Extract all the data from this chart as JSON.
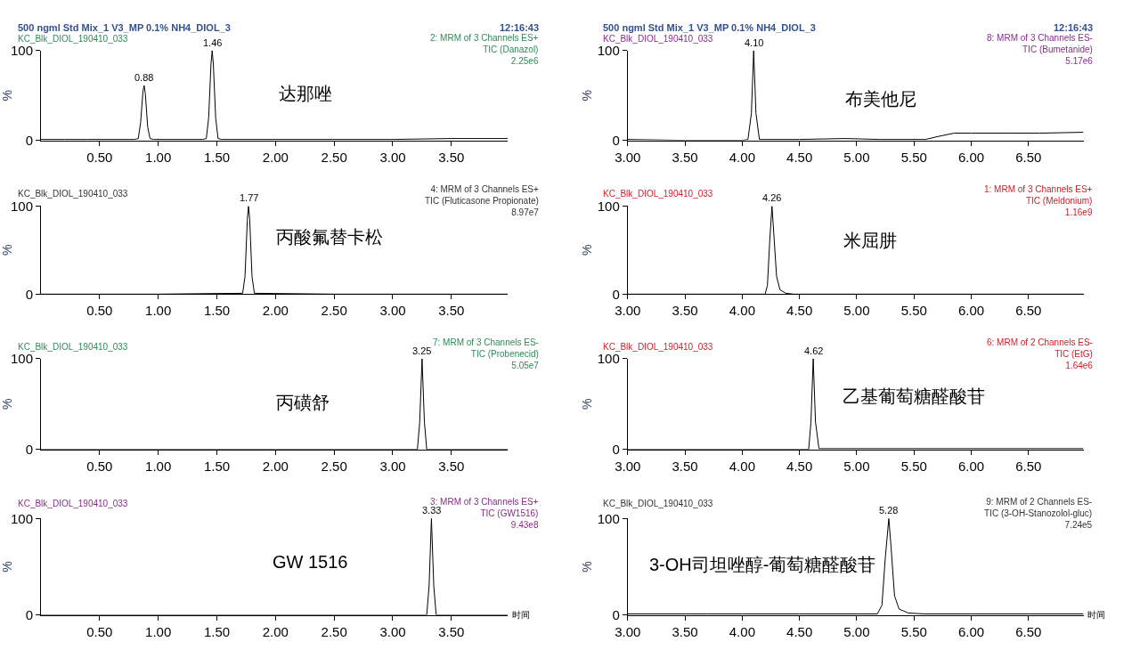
{
  "chart_data": [
    {
      "type": "line",
      "title": "500 ngml Std Mix_1 V3_MP 0.1% NH4_DIOL_3",
      "subtitle": "KC_Blk_DIOL_190410_033",
      "ylabel": "%",
      "annotations": [
        "12:16:43",
        "2: MRM of 3 Channels ES+\nTIC (Danazol)\n2.25e6",
        "达那唑",
        {
          "text": "0.88",
          "x": 0.88,
          "y": 61
        },
        {
          "text": "1.46",
          "x": 1.46,
          "y": 100
        }
      ],
      "x": [
        0,
        0.2,
        0.4,
        0.6,
        0.8,
        0.83,
        0.85,
        0.87,
        0.88,
        0.89,
        0.91,
        0.93,
        0.96,
        1.2,
        1.38,
        1.41,
        1.43,
        1.45,
        1.46,
        1.47,
        1.49,
        1.51,
        1.54,
        2.0,
        2.5,
        3.0,
        3.5,
        3.98
      ],
      "series": [
        {
          "color": "#000000",
          "values": [
            1,
            1,
            1,
            1,
            1,
            2,
            20,
            55,
            61,
            52,
            15,
            2,
            1,
            1,
            1,
            2,
            25,
            85,
            100,
            85,
            25,
            2,
            1,
            1,
            1,
            1,
            2,
            2
          ]
        }
      ],
      "xlim": [
        0,
        3.98
      ],
      "xticks": [
        {
          "value": 0.5,
          "label": "0.50"
        },
        {
          "value": 1.0,
          "label": "1.00"
        },
        {
          "value": 1.5,
          "label": "1.50"
        },
        {
          "value": 2.0,
          "label": "2.00"
        },
        {
          "value": 2.5,
          "label": "2.50"
        },
        {
          "value": 3.0,
          "label": "3.00"
        },
        {
          "value": 3.5,
          "label": "3.50"
        }
      ],
      "ylim": [
        0,
        100
      ],
      "yticks": [
        0,
        100
      ]
    },
    {
      "type": "line",
      "title": "500 ngml Std Mix_1 V3_MP 0.1% NH4_DIOL_3",
      "subtitle": "KC_Blk_DIOL_190410_033",
      "ylabel": "%",
      "annotations": [
        "12:16:43",
        "8: MRM of 3 Channels ES-\nTIC (Bumetanide)\n5.17e6",
        "布美他尼",
        {
          "text": "4.10",
          "x": 4.1,
          "y": 100
        }
      ],
      "x": [
        3.0,
        3.5,
        4.0,
        4.05,
        4.08,
        4.1,
        4.12,
        4.15,
        4.5,
        4.9,
        5.2,
        5.6,
        5.7,
        5.85,
        6.0,
        6.3,
        6.6,
        6.98
      ],
      "series": [
        {
          "color": "#000000",
          "values": [
            1,
            0,
            0,
            1,
            30,
            100,
            30,
            1,
            1,
            2,
            1,
            1,
            4,
            8,
            8,
            8,
            8,
            9
          ]
        }
      ],
      "xlim": [
        3.0,
        6.98
      ],
      "xticks": [
        {
          "value": 3.0,
          "label": "3.00"
        },
        {
          "value": 3.5,
          "label": "3.50"
        },
        {
          "value": 4.0,
          "label": "4.00"
        },
        {
          "value": 4.5,
          "label": "4.50"
        },
        {
          "value": 5.0,
          "label": "5.00"
        },
        {
          "value": 5.5,
          "label": "5.50"
        },
        {
          "value": 6.0,
          "label": "6.00"
        },
        {
          "value": 6.5,
          "label": "6.50"
        }
      ],
      "ylim": [
        0,
        100
      ],
      "yticks": [
        0,
        100
      ]
    },
    {
      "type": "line",
      "subtitle": "KC_Blk_DIOL_190410_033",
      "ylabel": "%",
      "annotations": [
        "4: MRM of 3 Channels ES+\nTIC (Fluticasone Propionate)\n8.97e7",
        "丙酸氟替卡松",
        {
          "text": "1.77",
          "x": 1.77,
          "y": 100
        }
      ],
      "x": [
        0,
        1.0,
        1.72,
        1.74,
        1.76,
        1.77,
        1.78,
        1.8,
        1.82,
        2.5,
        3.98
      ],
      "series": [
        {
          "color": "#000000",
          "values": [
            0,
            0,
            1,
            20,
            85,
            100,
            85,
            20,
            1,
            0,
            0
          ]
        }
      ],
      "xlim": [
        0,
        3.98
      ],
      "xticks": [
        {
          "value": 0.5,
          "label": "0.50"
        },
        {
          "value": 1.0,
          "label": "1.00"
        },
        {
          "value": 1.5,
          "label": "1.50"
        },
        {
          "value": 2.0,
          "label": "2.00"
        },
        {
          "value": 2.5,
          "label": "2.50"
        },
        {
          "value": 3.0,
          "label": "3.00"
        },
        {
          "value": 3.5,
          "label": "3.50"
        }
      ],
      "ylim": [
        0,
        100
      ],
      "yticks": [
        0,
        100
      ]
    },
    {
      "type": "line",
      "subtitle": "KC_Blk_DIOL_190410_033",
      "ylabel": "%",
      "annotations": [
        "1: MRM of 3 Channels ES+\nTIC (Meldonium)\n1.16e9",
        "米屈肼",
        {
          "text": "4.26",
          "x": 4.26,
          "y": 100
        }
      ],
      "x": [
        3.0,
        4.0,
        4.2,
        4.22,
        4.24,
        4.26,
        4.28,
        4.3,
        4.33,
        4.38,
        4.45,
        5.5,
        6.98
      ],
      "series": [
        {
          "color": "#000000",
          "values": [
            0,
            0,
            0,
            10,
            60,
            100,
            60,
            20,
            5,
            1,
            0,
            0,
            0
          ]
        }
      ],
      "xlim": [
        3.0,
        6.98
      ],
      "xticks": [
        {
          "value": 3.0,
          "label": "3.00"
        },
        {
          "value": 3.5,
          "label": "3.50"
        },
        {
          "value": 4.0,
          "label": "4.00"
        },
        {
          "value": 4.5,
          "label": "4.50"
        },
        {
          "value": 5.0,
          "label": "5.00"
        },
        {
          "value": 5.5,
          "label": "5.50"
        },
        {
          "value": 6.0,
          "label": "6.00"
        },
        {
          "value": 6.5,
          "label": "6.50"
        }
      ],
      "ylim": [
        0,
        100
      ],
      "yticks": [
        0,
        100
      ]
    },
    {
      "type": "line",
      "subtitle": "KC_Blk_DIOL_190410_033",
      "ylabel": "%",
      "annotations": [
        "7: MRM of 3 Channels ES-\nTIC (Probenecid)\n5.05e7",
        "丙磺舒",
        {
          "text": "3.25",
          "x": 3.25,
          "y": 100
        }
      ],
      "x": [
        0,
        2.0,
        3.21,
        3.23,
        3.25,
        3.27,
        3.29,
        3.98
      ],
      "series": [
        {
          "color": "#000000",
          "values": [
            0,
            0,
            0,
            30,
            100,
            30,
            0,
            0
          ]
        }
      ],
      "xlim": [
        0,
        3.98
      ],
      "xticks": [
        {
          "value": 0.5,
          "label": "0.50"
        },
        {
          "value": 1.0,
          "label": "1.00"
        },
        {
          "value": 1.5,
          "label": "1.50"
        },
        {
          "value": 2.0,
          "label": "2.00"
        },
        {
          "value": 2.5,
          "label": "2.50"
        },
        {
          "value": 3.0,
          "label": "3.00"
        },
        {
          "value": 3.5,
          "label": "3.50"
        }
      ],
      "ylim": [
        0,
        100
      ],
      "yticks": [
        0,
        100
      ]
    },
    {
      "type": "line",
      "subtitle": "KC_Blk_DIOL_190410_033",
      "ylabel": "%",
      "annotations": [
        "6: MRM of 2 Channels ES-\nTIC (EtG)\n1.64e6",
        "乙基葡萄糖醛酸苷",
        {
          "text": "4.62",
          "x": 4.62,
          "y": 100
        }
      ],
      "x": [
        3.0,
        4.0,
        4.58,
        4.6,
        4.62,
        4.64,
        4.67,
        5.5,
        6.98
      ],
      "series": [
        {
          "color": "#000000",
          "values": [
            0,
            0,
            0,
            30,
            100,
            30,
            1,
            1,
            1
          ]
        }
      ],
      "xlim": [
        3.0,
        6.98
      ],
      "xticks": [
        {
          "value": 3.0,
          "label": "3.00"
        },
        {
          "value": 3.5,
          "label": "3.50"
        },
        {
          "value": 4.0,
          "label": "4.00"
        },
        {
          "value": 4.5,
          "label": "4.50"
        },
        {
          "value": 5.0,
          "label": "5.00"
        },
        {
          "value": 5.5,
          "label": "5.50"
        },
        {
          "value": 6.0,
          "label": "6.00"
        },
        {
          "value": 6.5,
          "label": "6.50"
        }
      ],
      "ylim": [
        0,
        100
      ],
      "yticks": [
        0,
        100
      ]
    },
    {
      "type": "line",
      "subtitle": "KC_Blk_DIOL_190410_033",
      "xlabel": "时间",
      "ylabel": "%",
      "annotations": [
        "3: MRM of 3 Channels ES+\nTIC (GW1516)\n9.43e8",
        "GW 1516",
        {
          "text": "3.33",
          "x": 3.33,
          "y": 100
        }
      ],
      "x": [
        0,
        2.0,
        3.29,
        3.31,
        3.33,
        3.35,
        3.37,
        3.98
      ],
      "series": [
        {
          "color": "#000000",
          "values": [
            0,
            0,
            0,
            30,
            100,
            30,
            0,
            0
          ]
        }
      ],
      "xlim": [
        0,
        3.98
      ],
      "xticks": [
        {
          "value": 0.5,
          "label": "0.50"
        },
        {
          "value": 1.0,
          "label": "1.00"
        },
        {
          "value": 1.5,
          "label": "1.50"
        },
        {
          "value": 2.0,
          "label": "2.00"
        },
        {
          "value": 2.5,
          "label": "2.50"
        },
        {
          "value": 3.0,
          "label": "3.00"
        },
        {
          "value": 3.5,
          "label": "3.50"
        }
      ],
      "ylim": [
        0,
        100
      ],
      "yticks": [
        0,
        100
      ]
    },
    {
      "type": "line",
      "subtitle": "KC_Blk_DIOL_190410_033",
      "xlabel": "时间",
      "ylabel": "%",
      "annotations": [
        "9: MRM of 2 Channels ES-\nTIC (3-OH-Stanozolol-gluc)\n7.24e5",
        "3-OH司坦唑醇-葡萄糖醛酸苷",
        {
          "text": "5.28",
          "x": 5.28,
          "y": 100
        }
      ],
      "x": [
        3.0,
        3.5,
        3.7,
        4.0,
        4.5,
        5.0,
        5.18,
        5.22,
        5.25,
        5.28,
        5.3,
        5.33,
        5.37,
        5.45,
        5.6,
        6.0,
        6.5,
        6.98
      ],
      "series": [
        {
          "color": "#000000",
          "values": [
            1,
            1,
            1,
            1,
            1,
            1,
            1,
            10,
            60,
            100,
            70,
            20,
            6,
            2,
            1,
            1,
            1,
            1
          ]
        }
      ],
      "xlim": [
        3.0,
        6.98
      ],
      "xticks": [
        {
          "value": 3.0,
          "label": "3.00"
        },
        {
          "value": 3.5,
          "label": "3.50"
        },
        {
          "value": 4.0,
          "label": "4.00"
        },
        {
          "value": 4.5,
          "label": "4.50"
        },
        {
          "value": 5.0,
          "label": "5.00"
        },
        {
          "value": 5.5,
          "label": "5.50"
        },
        {
          "value": 6.0,
          "label": "6.00"
        },
        {
          "value": 6.5,
          "label": "6.50"
        }
      ],
      "ylim": [
        0,
        100
      ],
      "yticks": [
        0,
        100
      ]
    }
  ]
}
